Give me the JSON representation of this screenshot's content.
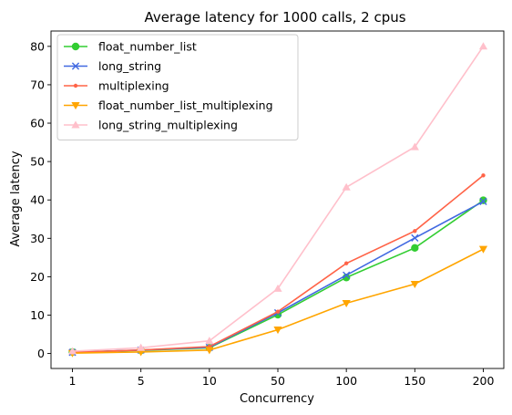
{
  "chart_data": {
    "type": "line",
    "title": "Average latency for 1000 calls, 2 cpus",
    "xlabel": "Concurrency",
    "ylabel": "Average latency",
    "categories": [
      "1",
      "5",
      "10",
      "50",
      "100",
      "150",
      "200"
    ],
    "ylim": [
      -3.9,
      84
    ],
    "yticks": [
      0,
      10,
      20,
      30,
      40,
      50,
      60,
      70,
      80
    ],
    "grid": false,
    "legend_position": "upper-left",
    "series": [
      {
        "name": "float_number_list",
        "color": "#32cd32",
        "marker": "circle",
        "values": [
          0.4,
          0.8,
          1.5,
          10.1,
          19.8,
          27.5,
          39.9
        ]
      },
      {
        "name": "long_string",
        "color": "#4169e1",
        "marker": "x",
        "values": [
          0.3,
          0.9,
          1.6,
          10.6,
          20.4,
          30.1,
          39.6
        ]
      },
      {
        "name": "multiplexing",
        "color": "#ff6347",
        "marker": "point",
        "values": [
          0.3,
          0.9,
          1.8,
          10.9,
          23.5,
          31.9,
          46.4
        ]
      },
      {
        "name": "float_number_list_multiplexing",
        "color": "#ffa500",
        "marker": "triangle-down",
        "values": [
          0.1,
          0.4,
          0.9,
          6.2,
          13.1,
          18.1,
          27.2
        ]
      },
      {
        "name": "long_string_multiplexing",
        "color": "#ffc0cb",
        "marker": "triangle-up",
        "values": [
          0.6,
          1.5,
          3.3,
          16.9,
          43.3,
          53.8,
          80.0
        ]
      }
    ]
  }
}
